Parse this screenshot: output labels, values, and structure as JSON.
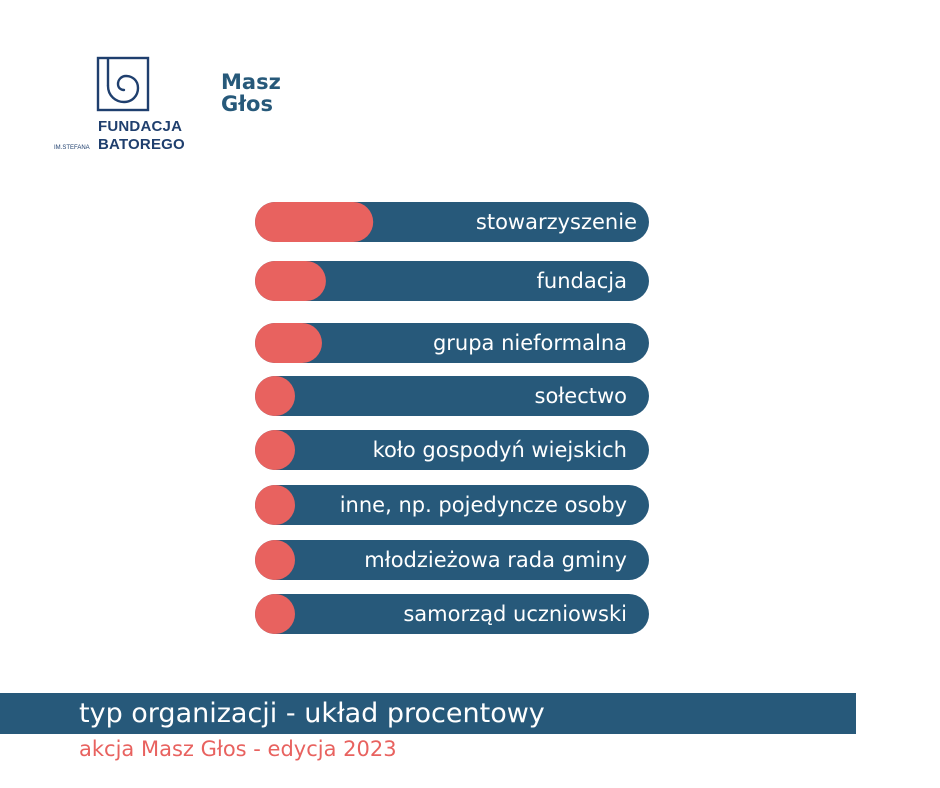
{
  "colors": {
    "bar_background": "#27597a",
    "bar_fill": "#e8625f",
    "brand_navy": "#1f3f6e",
    "label": "#ffffff"
  },
  "logos": {
    "batory": {
      "line1": "FUNDACJA",
      "small": "IM.STEFANA",
      "line2": "BATOREGO",
      "icon": "batory-spiral-icon"
    },
    "masz_glos": {
      "line1": "Masz",
      "line2": "Głos",
      "icon": "speech-bubble-icon"
    }
  },
  "footer": {
    "title": "typ organizacji - układ procentowy",
    "subtitle": "akcja Masz Głos - edycja 2023"
  },
  "chart_data": {
    "type": "bar",
    "orientation": "horizontal",
    "title": "typ organizacji - układ procentowy",
    "categories": [
      "stowarzyszenie",
      "fundacja",
      "grupa nieformalna",
      "sołectwo",
      "koło gospodyń wiejskich",
      "inne, np. pojedyncze osoby",
      "młodzieżowa rada gminy",
      "samorząd uczniowski"
    ],
    "values": [
      30,
      18,
      17,
      10,
      10,
      10,
      10,
      10
    ],
    "xlim": [
      0,
      100
    ],
    "value_unit": "%",
    "grid": false,
    "legend": false
  }
}
